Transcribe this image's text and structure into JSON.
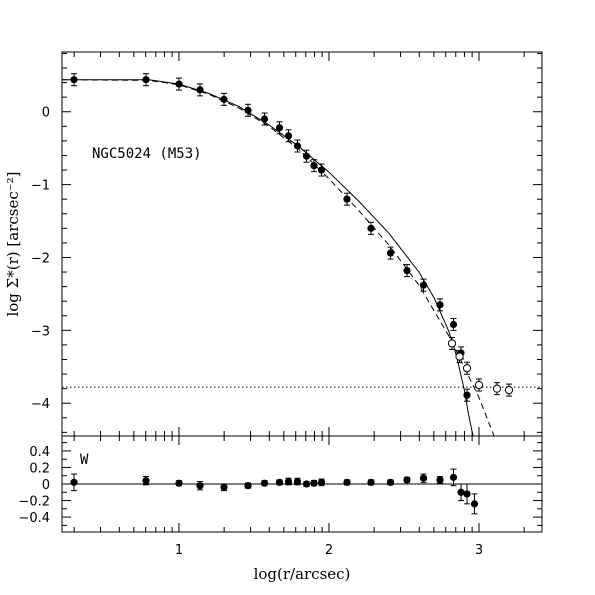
{
  "chart_data": [
    {
      "type": "scatter",
      "panel": "main",
      "annotation": "NGC5024 (M53)",
      "xlabel": "log(r/arcsec)",
      "ylabel": "log Σ*(r) [arcsec⁻²]",
      "xlim": [
        0.22,
        3.42
      ],
      "ylim": [
        -4.45,
        0.82
      ],
      "xticks": [
        "1",
        "2",
        "3"
      ],
      "yticks": [
        "0",
        "−1",
        "−2",
        "−3",
        "−4"
      ],
      "background_level": -3.78,
      "series": [
        {
          "marker": "filled",
          "x": [
            0.3,
            0.78,
            1.0,
            1.14,
            1.3,
            1.46,
            1.57,
            1.67,
            1.73,
            1.79,
            1.85,
            1.9,
            1.95,
            2.12,
            2.28,
            2.41,
            2.52,
            2.63,
            2.74,
            2.83,
            2.88,
            2.92
          ],
          "y": [
            0.44,
            0.44,
            0.38,
            0.3,
            0.17,
            0.02,
            -0.1,
            -0.22,
            -0.33,
            -0.47,
            -0.61,
            -0.74,
            -0.8,
            -1.2,
            -1.6,
            -1.94,
            -2.18,
            -2.38,
            -2.65,
            -2.92,
            -3.31,
            -3.89
          ]
        },
        {
          "marker": "open",
          "x": [
            2.82,
            2.87,
            2.92,
            3.0,
            3.12,
            3.2
          ],
          "y": [
            -3.18,
            -3.36,
            -3.52,
            -3.75,
            -3.8,
            -3.82
          ]
        }
      ],
      "curves": [
        {
          "style": "solid",
          "x": [
            0.22,
            0.8,
            1.0,
            1.2,
            1.4,
            1.6,
            1.8,
            2.0,
            2.2,
            2.4,
            2.6,
            2.7,
            2.8,
            2.85,
            2.9,
            2.93,
            2.96
          ],
          "y": [
            0.44,
            0.44,
            0.38,
            0.25,
            0.07,
            -0.18,
            -0.48,
            -0.83,
            -1.23,
            -1.67,
            -2.2,
            -2.55,
            -3.02,
            -3.35,
            -3.8,
            -4.15,
            -4.45
          ]
        },
        {
          "style": "dashed",
          "x": [
            0.22,
            0.8,
            1.0,
            1.2,
            1.4,
            1.6,
            1.8,
            2.0,
            2.2,
            2.4,
            2.6,
            2.8,
            3.0,
            3.1
          ],
          "y": [
            0.44,
            0.43,
            0.37,
            0.24,
            0.05,
            -0.2,
            -0.52,
            -0.92,
            -1.36,
            -1.83,
            -2.38,
            -3.08,
            -3.92,
            -4.45
          ]
        }
      ]
    },
    {
      "type": "scatter",
      "panel": "residual",
      "annotation": "W",
      "xlabel": "log(r/arcsec)",
      "xlim": [
        0.22,
        3.42
      ],
      "ylim": [
        -0.58,
        0.58
      ],
      "xticks": [
        "1",
        "2",
        "3"
      ],
      "yticks": [
        "0.4",
        "0.2",
        "0",
        "−0.2",
        "−0.4"
      ],
      "zero_line": 0,
      "series": [
        {
          "marker": "filled",
          "x": [
            0.3,
            0.78,
            1.0,
            1.14,
            1.3,
            1.46,
            1.57,
            1.67,
            1.73,
            1.79,
            1.85,
            1.9,
            1.95,
            2.12,
            2.28,
            2.41,
            2.52,
            2.63,
            2.74,
            2.83,
            2.88,
            2.92
          ],
          "y": [
            0.02,
            0.04,
            0.01,
            -0.02,
            -0.04,
            -0.02,
            0.01,
            0.02,
            0.03,
            0.03,
            0.0,
            0.01,
            0.02,
            0.02,
            0.02,
            0.02,
            0.05,
            0.07,
            0.05,
            0.08,
            -0.1,
            -0.12
          ],
          "yerr": [
            0.1,
            0.05,
            0.03,
            0.05,
            0.04,
            0.03,
            0.03,
            0.03,
            0.04,
            0.04,
            0.03,
            0.03,
            0.04,
            0.03,
            0.03,
            0.03,
            0.03,
            0.05,
            0.04,
            0.1,
            0.1,
            0.12
          ]
        },
        {
          "marker": "filled",
          "x": [
            2.97
          ],
          "y": [
            -0.24
          ],
          "yerr": [
            0.12
          ]
        }
      ]
    }
  ]
}
